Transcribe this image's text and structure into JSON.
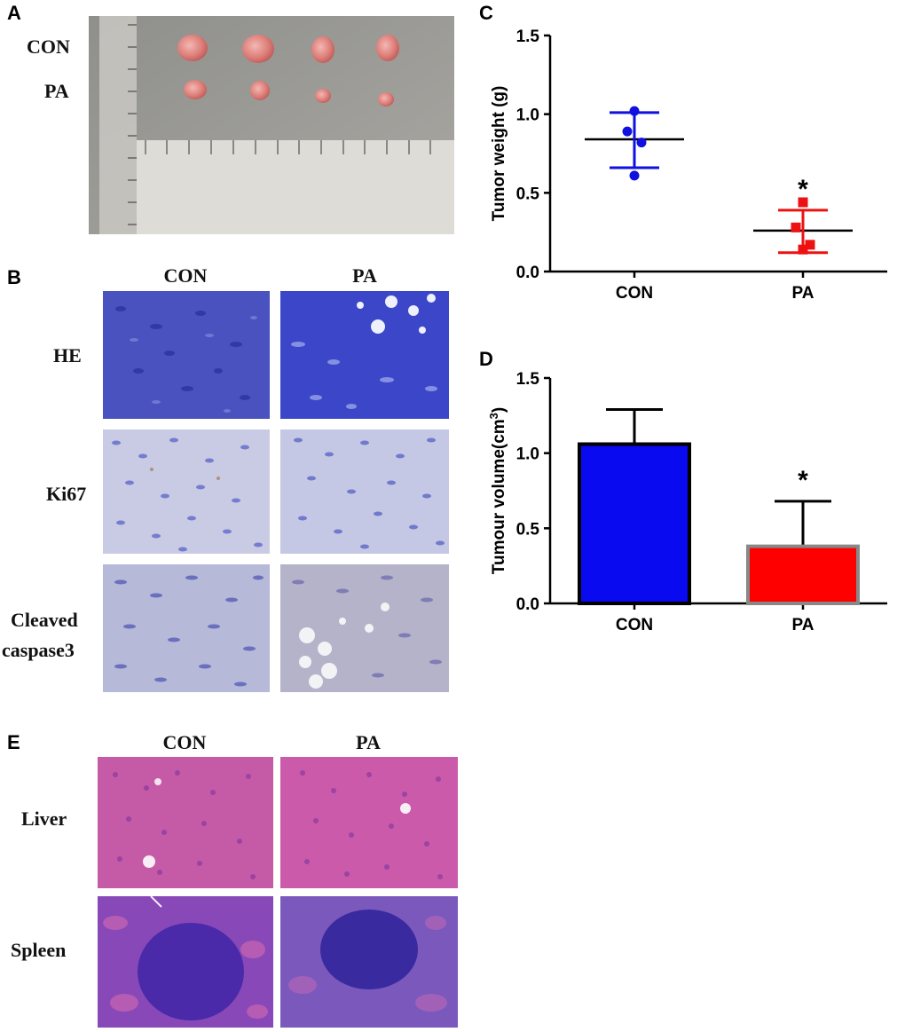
{
  "panels": {
    "A": {
      "letter": "A",
      "rows": [
        "CON",
        "PA"
      ]
    },
    "B": {
      "letter": "B",
      "columns": [
        "CON",
        "PA"
      ],
      "rows": [
        "HE",
        "Ki67",
        "Cleaved caspase3"
      ],
      "row_label_lines": {
        "cleaved_1": "Cleaved",
        "cleaved_2": "caspase3"
      }
    },
    "C": {
      "letter": "C"
    },
    "D": {
      "letter": "D"
    },
    "E": {
      "letter": "E",
      "columns": [
        "CON",
        "PA"
      ],
      "rows": [
        "Liver",
        "Spleen"
      ]
    }
  },
  "stain_colors": {
    "ihc_blue": "#5a63c8",
    "ihc_pale": "#c9cbe4",
    "he_pink": "#c45aa8",
    "he_purple": "#6a3aa8"
  },
  "chart_data": [
    {
      "id": "C",
      "type": "scatter",
      "ylabel": "Tumor weight (g)",
      "xlabel": "",
      "categories": [
        "CON",
        "PA"
      ],
      "ylim": [
        0,
        1.5
      ],
      "yticks": [
        "0.0",
        "0.5",
        "1.0",
        "1.5"
      ],
      "series": [
        {
          "category": "CON",
          "color": "#1010e0",
          "marker": "circle",
          "points": [
            1.02,
            0.89,
            0.82,
            0.61
          ],
          "mean": 0.84,
          "sd_low": 0.66,
          "sd_high": 1.01
        },
        {
          "category": "PA",
          "color": "#ee1111",
          "marker": "square",
          "points": [
            0.44,
            0.28,
            0.17,
            0.14
          ],
          "mean": 0.26,
          "sd_low": 0.12,
          "sd_high": 0.39
        }
      ],
      "annotations": [
        {
          "category": "PA",
          "text": "*"
        }
      ]
    },
    {
      "id": "D",
      "type": "bar",
      "ylabel": "Tumour volume(cm",
      "ylabel_sup": "3",
      "ylabel_close": ")",
      "xlabel": "",
      "categories": [
        "CON",
        "PA"
      ],
      "values": [
        1.06,
        0.38
      ],
      "errors": [
        0.23,
        0.3
      ],
      "colors": [
        "#0a0af0",
        "#ff0000"
      ],
      "ylim": [
        0,
        1.5
      ],
      "yticks": [
        "0.0",
        "0.5",
        "1.0",
        "1.5"
      ],
      "annotations": [
        {
          "category": "PA",
          "text": "*"
        }
      ]
    }
  ]
}
